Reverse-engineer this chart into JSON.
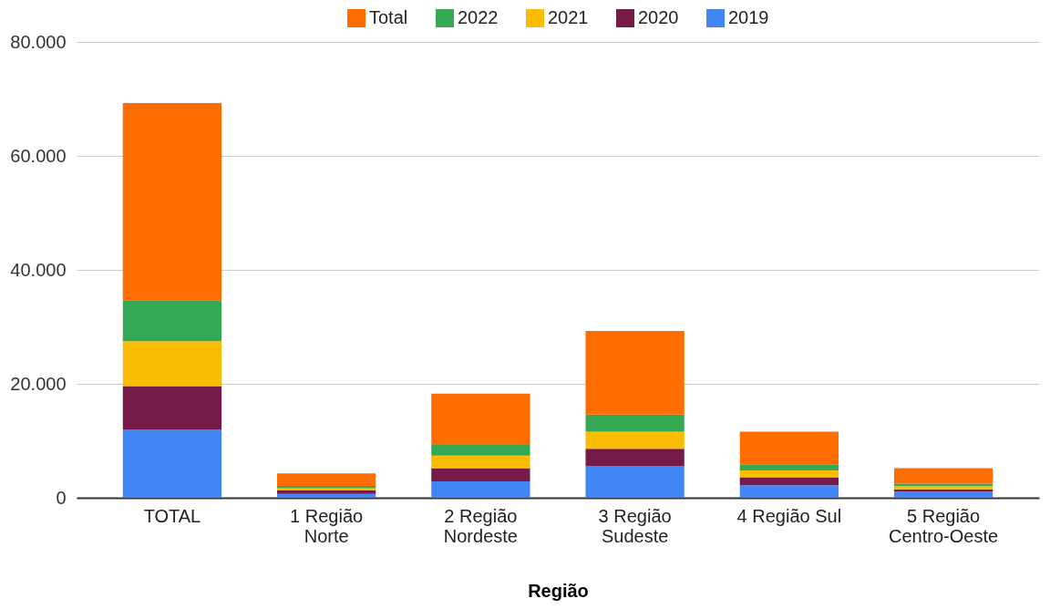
{
  "chart_data": {
    "type": "bar",
    "xlabel": "Região",
    "stacked": true,
    "legend": "top",
    "grid": "y",
    "categories": [
      "TOTAL",
      "1 Região Norte",
      "2 Região Nordeste",
      "3 Região Sudeste",
      "4 Região Sul",
      "5 Região Centro-Oeste"
    ],
    "series": [
      {
        "name": "2019",
        "color": "#4285f4",
        "values": [
          12000,
          700,
          2900,
          5600,
          2200,
          1100
        ]
      },
      {
        "name": "2020",
        "color": "#741b47",
        "values": [
          7600,
          600,
          2300,
          3000,
          1400,
          400
        ]
      },
      {
        "name": "2021",
        "color": "#fbbc04",
        "values": [
          7900,
          400,
          2200,
          3000,
          1200,
          600
        ]
      },
      {
        "name": "2022",
        "color": "#34a853",
        "values": [
          7200,
          400,
          1900,
          3000,
          1100,
          400
        ]
      },
      {
        "name": "Total",
        "color": "#ff6d01",
        "values": [
          34600,
          2200,
          9000,
          14700,
          5700,
          2700
        ]
      }
    ],
    "ylim": [
      0,
      80000
    ],
    "yticks": [
      0,
      {
        "value": 20000,
        "label": "20.000"
      },
      {
        "value": 40000,
        "label": "40.000"
      },
      {
        "value": 60000,
        "label": "60.000"
      },
      {
        "value": 80000,
        "label": "80.000"
      }
    ]
  }
}
